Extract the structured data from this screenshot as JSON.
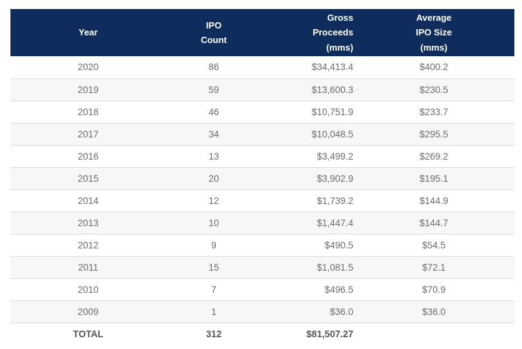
{
  "header": {
    "year": [
      "Year"
    ],
    "count": [
      "IPO",
      "Count"
    ],
    "gross": [
      "Gross",
      "Proceeds",
      "(mms)"
    ],
    "avg": [
      "Average",
      "IPO Size",
      "(mms)"
    ]
  },
  "rows": [
    {
      "year": "2020",
      "count": "86",
      "gross": "$34,413.4",
      "avg": "$400.2"
    },
    {
      "year": "2019",
      "count": "59",
      "gross": "$13,600.3",
      "avg": "$230.5"
    },
    {
      "year": "2018",
      "count": "46",
      "gross": "$10,751.9",
      "avg": "$233.7"
    },
    {
      "year": "2017",
      "count": "34",
      "gross": "$10,048.5",
      "avg": "$295.5"
    },
    {
      "year": "2016",
      "count": "13",
      "gross": "$3,499.2",
      "avg": "$269.2"
    },
    {
      "year": "2015",
      "count": "20",
      "gross": "$3,902.9",
      "avg": "$195.1"
    },
    {
      "year": "2014",
      "count": "12",
      "gross": "$1,739.2",
      "avg": "$144.9"
    },
    {
      "year": "2013",
      "count": "10",
      "gross": "$1,447.4",
      "avg": "$144.7"
    },
    {
      "year": "2012",
      "count": "9",
      "gross": "$490.5",
      "avg": "$54.5"
    },
    {
      "year": "2011",
      "count": "15",
      "gross": "$1,081.5",
      "avg": "$72.1"
    },
    {
      "year": "2010",
      "count": "7",
      "gross": "$496.5",
      "avg": "$70.9"
    },
    {
      "year": "2009",
      "count": "1",
      "gross": "$36.0",
      "avg": "$36.0"
    }
  ],
  "total": {
    "year": "TOTAL",
    "count": "312",
    "gross": "$81,507.27",
    "avg": ""
  },
  "colors": {
    "header_bg": "#0f2d5c",
    "header_text": "#ffffff",
    "row_alt": "#f7f7f7",
    "cell_text": "#6b6b6b"
  }
}
